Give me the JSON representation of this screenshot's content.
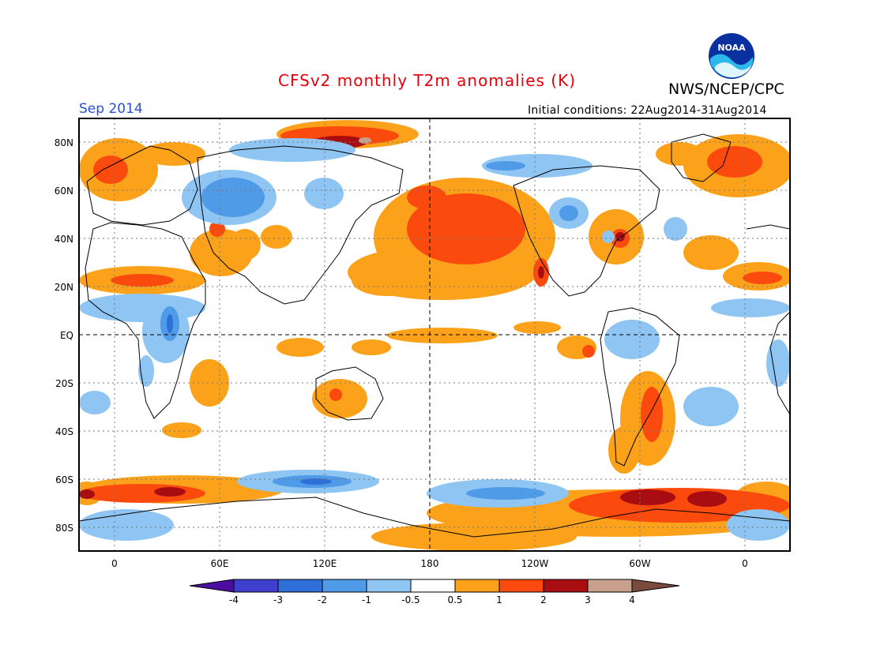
{
  "header": {
    "title": "CFSv2 monthly T2m anomalies (K)",
    "agency": "NWS/NCEP/CPC",
    "month": "Sep 2014",
    "initial_conditions": "Initial conditions: 22Aug2014-31Aug2014",
    "logo_text": "NOAA"
  },
  "map": {
    "lat_labels": [
      "80N",
      "60N",
      "40N",
      "20N",
      "EQ",
      "20S",
      "40S",
      "60S",
      "80S"
    ],
    "lon_labels": [
      "0",
      "60E",
      "120E",
      "180",
      "120W",
      "60W",
      "0"
    ],
    "colors": {
      "minus4": "#4b0ea0",
      "minus3": "#3f3fcf",
      "minus2": "#2f6fd9",
      "minus1": "#4f9be8",
      "minus05": "#8ec5f3",
      "neutral": "#ffffff",
      "plus05": "#fba21a",
      "plus1": "#fb4a0e",
      "plus2": "#a80d12",
      "plus3": "#c7a08e",
      "plus4": "#7a4b3a"
    }
  },
  "colorbar": {
    "labels": [
      "-4",
      "-3",
      "-2",
      "-1",
      "-0.5",
      "0.5",
      "1",
      "2",
      "3",
      "4"
    ],
    "colors": [
      "#4b0ea0",
      "#3f3fcf",
      "#2f6fd9",
      "#4f9be8",
      "#8ec5f3",
      "#ffffff",
      "#fba21a",
      "#fb4a0e",
      "#a80d12",
      "#c7a08e"
    ],
    "low_tip": "#4b0ea0",
    "high_tip": "#7a4b3a"
  }
}
